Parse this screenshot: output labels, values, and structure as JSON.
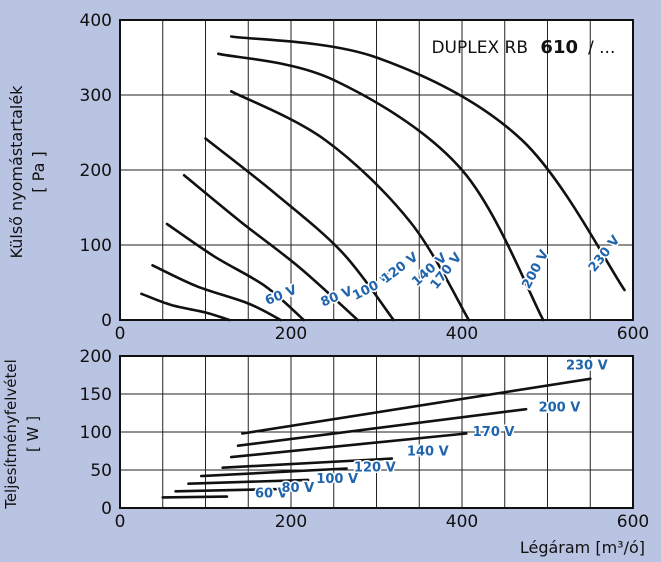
{
  "background_color": "#b9c3e2",
  "plot_background": "#ffffff",
  "curve_color": "#111111",
  "label_color": "#1f64ad",
  "x_axis_label": "Légáram [m³/ó]",
  "chart_data": [
    {
      "type": "line",
      "id": "pressure",
      "title": "DUPLEX RB",
      "title_model": "610",
      "title_suffix": "/ ...",
      "xlabel": "",
      "ylabel": "Külső nyomástartalék",
      "ylabel_unit": "[ Pa ]",
      "xlim": [
        0,
        600
      ],
      "ylim": [
        0,
        400
      ],
      "xticks": [
        0,
        200,
        400,
        600
      ],
      "yticks": [
        0,
        100,
        200,
        300,
        400
      ],
      "grid": true,
      "series": [
        {
          "name": "60 V",
          "label": [
            190,
            28,
            -22
          ],
          "points": [
            [
              25,
              35
            ],
            [
              60,
              20
            ],
            [
              100,
              10
            ],
            [
              128,
              0
            ]
          ]
        },
        {
          "name": "80 V",
          "label": [
            255,
            26,
            -22
          ],
          "points": [
            [
              38,
              73
            ],
            [
              90,
              45
            ],
            [
              150,
              22
            ],
            [
              188,
              0
            ]
          ]
        },
        {
          "name": "100 V",
          "label": [
            297,
            39,
            -27
          ],
          "points": [
            [
              55,
              128
            ],
            [
              110,
              85
            ],
            [
              170,
              45
            ],
            [
              215,
              0
            ]
          ]
        },
        {
          "name": "120 V",
          "label": [
            330,
            65,
            -37
          ],
          "points": [
            [
              75,
              193
            ],
            [
              140,
              132
            ],
            [
              210,
              70
            ],
            [
              278,
              0
            ]
          ]
        },
        {
          "name": "140 V",
          "label": [
            365,
            63,
            -42
          ],
          "points": [
            [
              100,
              242
            ],
            [
              180,
              170
            ],
            [
              260,
              90
            ],
            [
              320,
              0
            ]
          ]
        },
        {
          "name": "170 V",
          "label": [
            385,
            62,
            -52
          ],
          "points": [
            [
              130,
              305
            ],
            [
              240,
              240
            ],
            [
              340,
              130
            ],
            [
              408,
              0
            ]
          ]
        },
        {
          "name": "200 V",
          "label": [
            490,
            65,
            -62
          ],
          "points": [
            [
              115,
              355
            ],
            [
              250,
              320
            ],
            [
              400,
              200
            ],
            [
              495,
              0
            ]
          ]
        },
        {
          "name": "230 V",
          "label": [
            570,
            85,
            -52
          ],
          "points": [
            [
              130,
              378
            ],
            [
              300,
              350
            ],
            [
              470,
              240
            ],
            [
              590,
              40
            ]
          ]
        }
      ]
    },
    {
      "type": "line",
      "id": "power",
      "xlabel": "Légáram [m³/ó]",
      "ylabel": "Teljesítményfelvétel",
      "ylabel_unit": "[ W ]",
      "xlim": [
        0,
        600
      ],
      "ylim": [
        0,
        200
      ],
      "xticks": [
        0,
        200,
        400,
        600
      ],
      "yticks": [
        0,
        50,
        100,
        150,
        200
      ],
      "grid": true,
      "series": [
        {
          "name": "60 V",
          "label": [
            177,
            14
          ],
          "points": [
            [
              50,
              14
            ],
            [
              125,
              15
            ]
          ]
        },
        {
          "name": "80 V",
          "label": [
            208,
            21
          ],
          "points": [
            [
              65,
              22
            ],
            [
              190,
              25
            ]
          ]
        },
        {
          "name": "100 V",
          "label": [
            254,
            33
          ],
          "points": [
            [
              80,
              32
            ],
            [
              220,
              37
            ]
          ]
        },
        {
          "name": "120 V",
          "label": [
            298,
            48
          ],
          "points": [
            [
              95,
              42
            ],
            [
              265,
              52
            ]
          ]
        },
        {
          "name": "140 V",
          "label": [
            360,
            69
          ],
          "points": [
            [
              120,
              53
            ],
            [
              318,
              65
            ]
          ]
        },
        {
          "name": "170 V",
          "label": [
            437,
            95
          ],
          "points": [
            [
              130,
              67
            ],
            [
              405,
              98
            ]
          ]
        },
        {
          "name": "200 V",
          "label": [
            514,
            127
          ],
          "points": [
            [
              138,
              82
            ],
            [
              475,
              130
            ]
          ]
        },
        {
          "name": "230 V",
          "label": [
            546,
            182
          ],
          "points": [
            [
              143,
              98
            ],
            [
              550,
              170
            ]
          ]
        }
      ]
    }
  ]
}
